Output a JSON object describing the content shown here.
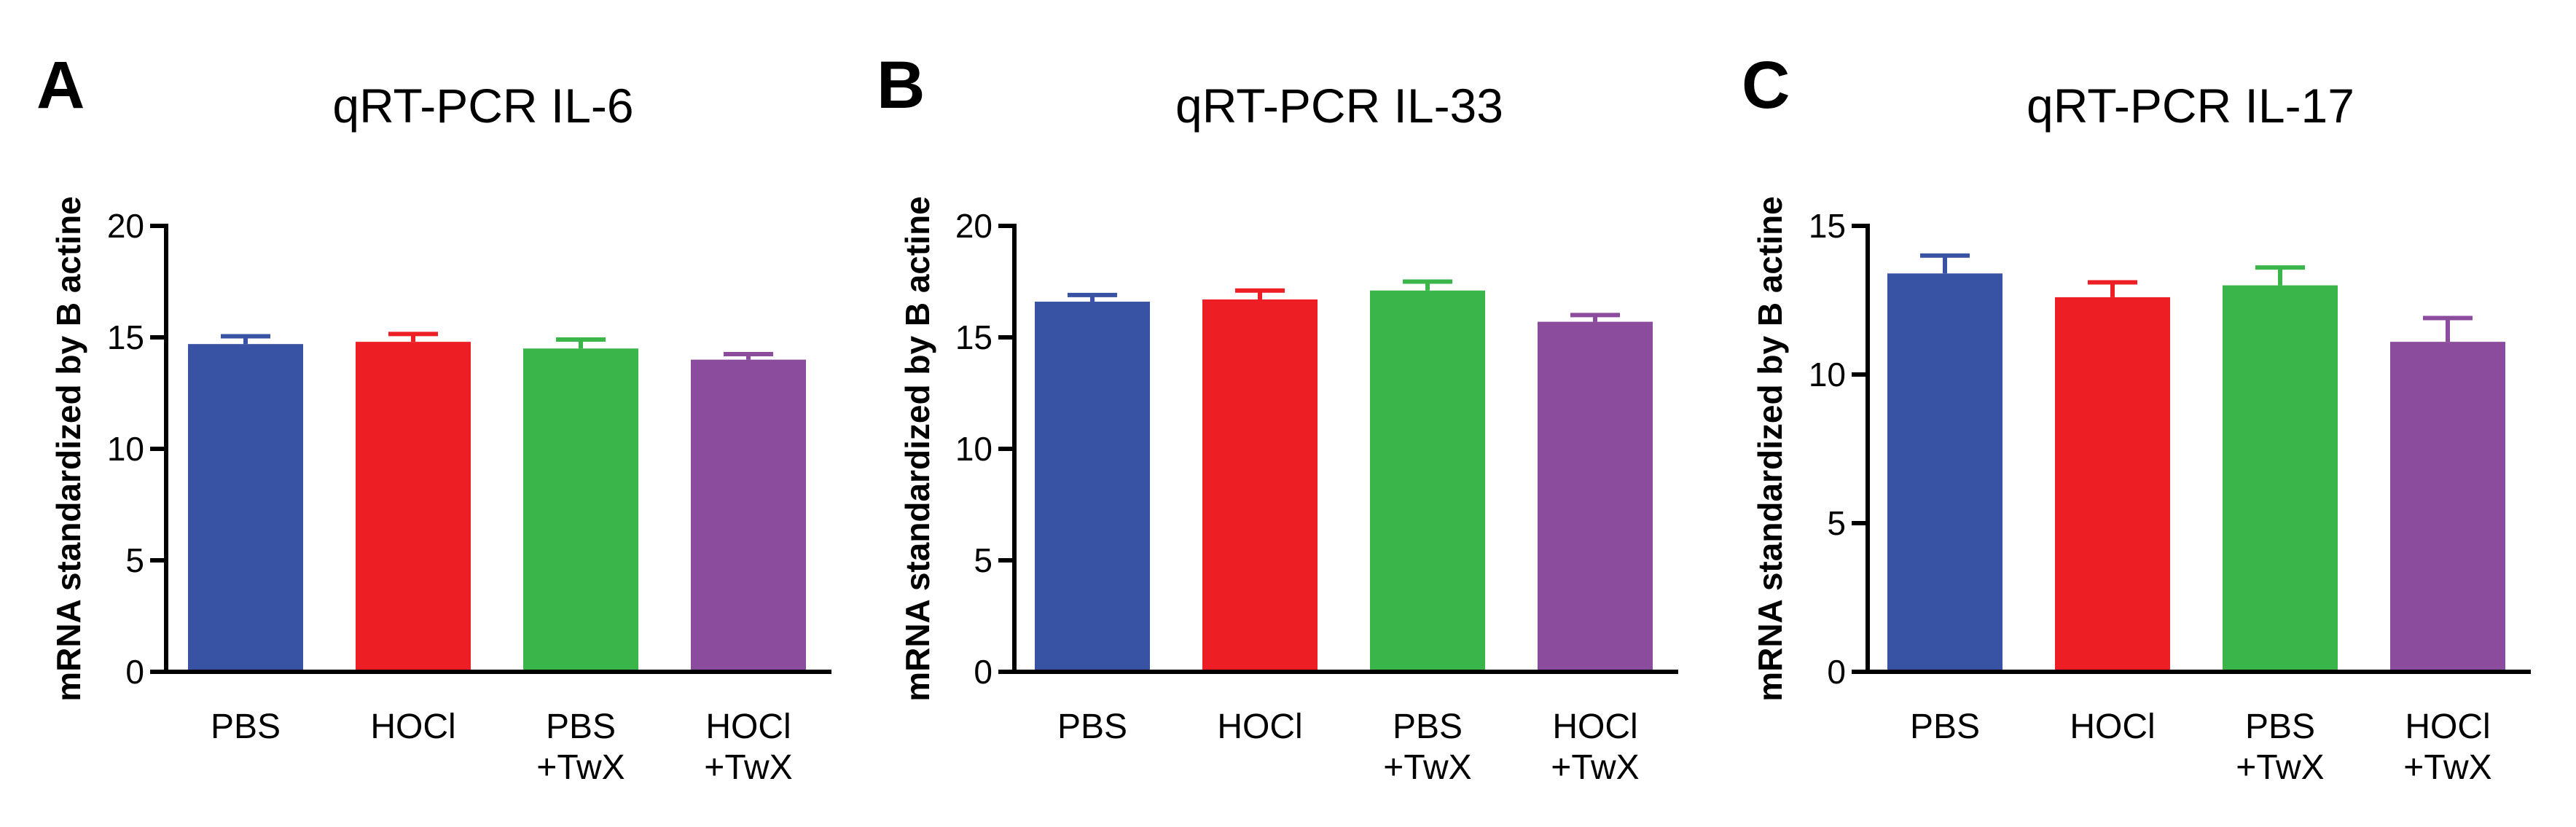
{
  "chart_data": [
    {
      "panel": "A",
      "type": "bar",
      "title": "qRT-PCR IL-6",
      "ylabel": "mRNA standardized by B actine",
      "xlabel": "",
      "categories": [
        [
          "PBS"
        ],
        [
          "HOCl"
        ],
        [
          "PBS",
          "+TwX"
        ],
        [
          "HOCl",
          "+TwX"
        ]
      ],
      "values": [
        14.7,
        14.8,
        14.5,
        14.0
      ],
      "errors": [
        0.35,
        0.35,
        0.4,
        0.25
      ],
      "colors": [
        "#3953a4",
        "#ed1f24",
        "#39b54a",
        "#8b4c9e"
      ],
      "ylim": [
        0,
        20
      ],
      "yticks": [
        0,
        5,
        10,
        15,
        20
      ]
    },
    {
      "panel": "B",
      "type": "bar",
      "title": "qRT-PCR IL-33",
      "ylabel": "mRNA standardized by B actine",
      "xlabel": "",
      "categories": [
        [
          "PBS"
        ],
        [
          "HOCl"
        ],
        [
          "PBS",
          "+TwX"
        ],
        [
          "HOCl",
          "+TwX"
        ]
      ],
      "values": [
        16.6,
        16.7,
        17.1,
        15.7
      ],
      "errors": [
        0.3,
        0.4,
        0.4,
        0.3
      ],
      "colors": [
        "#3953a4",
        "#ed1f24",
        "#39b54a",
        "#8b4c9e"
      ],
      "ylim": [
        0,
        20
      ],
      "yticks": [
        0,
        5,
        10,
        15,
        20
      ]
    },
    {
      "panel": "C",
      "type": "bar",
      "title": "qRT-PCR IL-17",
      "ylabel": "mRNA standardized by B actine",
      "xlabel": "",
      "categories": [
        [
          "PBS"
        ],
        [
          "HOCl"
        ],
        [
          "PBS",
          "+TwX"
        ],
        [
          "HOCl",
          "+TwX"
        ]
      ],
      "values": [
        13.4,
        12.6,
        13.0,
        11.1
      ],
      "errors": [
        0.6,
        0.5,
        0.6,
        0.8
      ],
      "colors": [
        "#3953a4",
        "#ed1f24",
        "#39b54a",
        "#8b4c9e"
      ],
      "ylim": [
        0,
        15
      ],
      "yticks": [
        0,
        5,
        10,
        15
      ]
    }
  ]
}
